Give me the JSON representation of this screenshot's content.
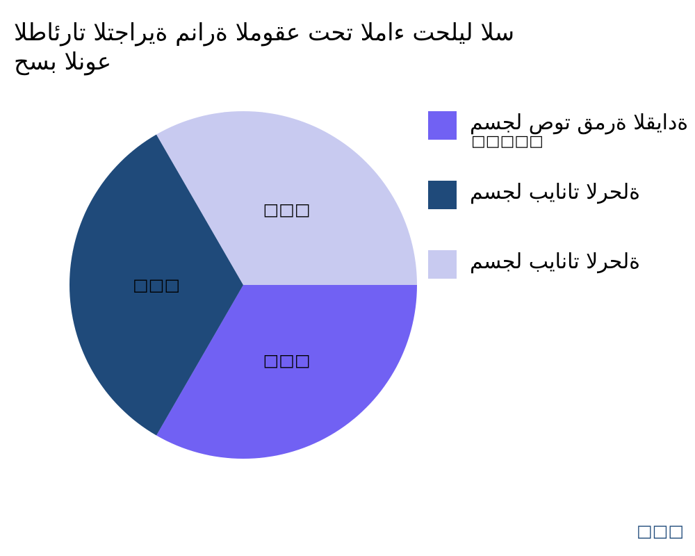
{
  "chart_data": {
    "type": "pie",
    "title_lines": [
      "الطائرات التجارية منارة الموقع تحت الماء تحليل الس",
      "حسب النوع"
    ],
    "slices": [
      {
        "name": "مسجل صوت قمرة القيادة",
        "name_line2": "□□□□□",
        "value": 33.33,
        "label": "□□□",
        "color": "#7161f3"
      },
      {
        "name": "مسجل بيانات الرحلة",
        "value": 33.33,
        "label": "□□□",
        "color": "#1f4a7a"
      },
      {
        "name": "مسجل بيانات الرحلة",
        "value": 33.33,
        "label": "□□□",
        "color": "#c8caf0"
      }
    ],
    "start_angle": "3 o'clock, clockwise",
    "legend_position": "right"
  },
  "footer": {
    "credit": "□□□"
  }
}
